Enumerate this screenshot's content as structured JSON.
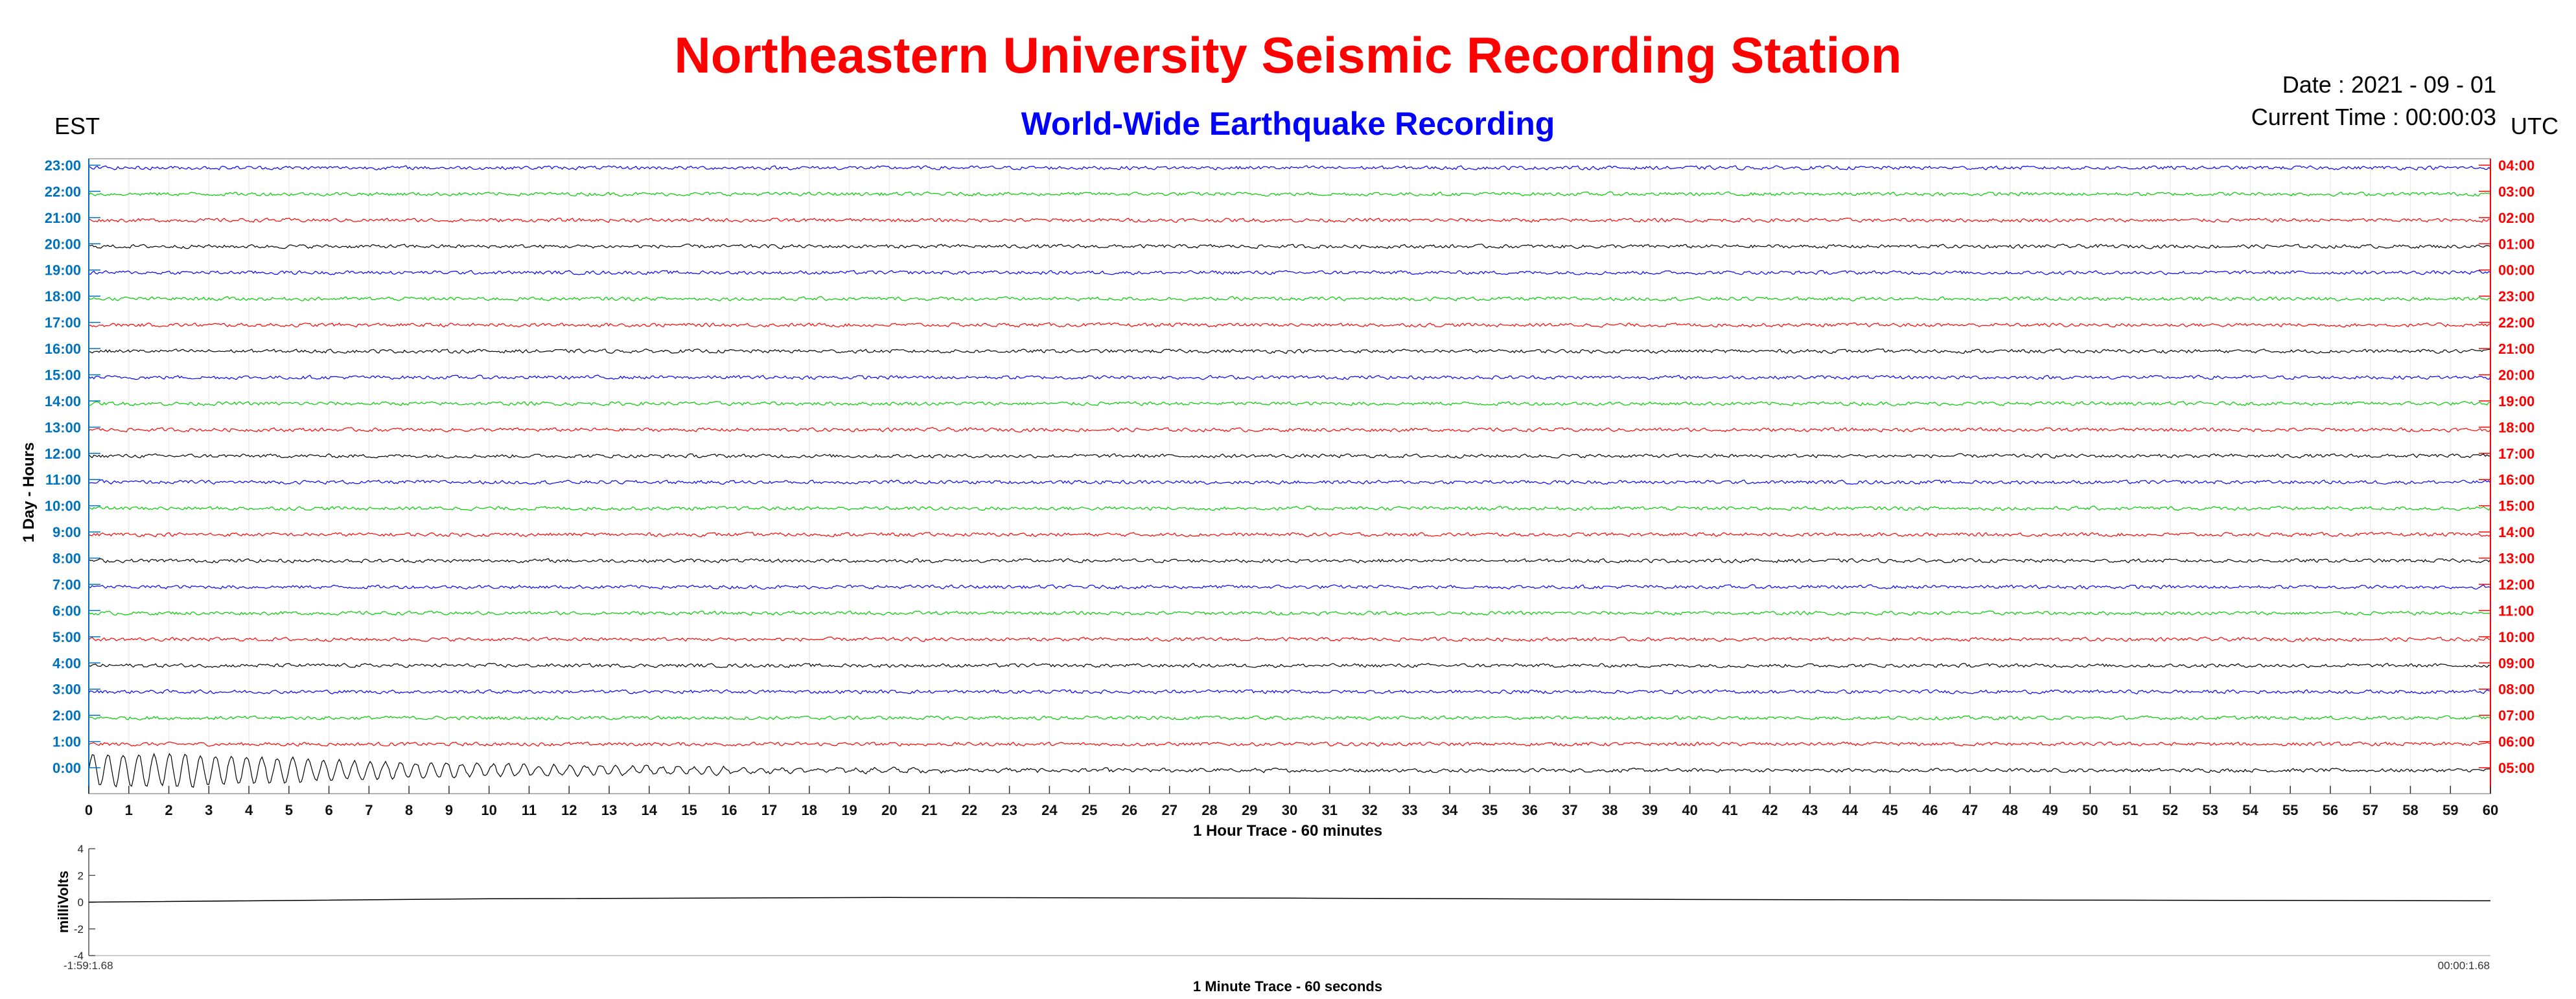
{
  "title": "Northeastern University Seismic Recording Station",
  "subtitle": "World-Wide Earthquake Recording",
  "left_timezone": "EST",
  "right_timezone": "UTC",
  "date_text": "Date : 2021 - 09 - 01",
  "current_time_text": "Current Time : 00:00:03",
  "colors": {
    "title": "#ff0000",
    "subtitle": "#0000ff",
    "left_ticks": "#0072bd",
    "right_ticks": "#ff0000"
  },
  "chart_data": [
    {
      "type": "line",
      "title": "",
      "xlabel": "1 Hour Trace - 60 minutes",
      "ylabel": "1 Day - Hours",
      "xlim": [
        0,
        60
      ],
      "x_ticks": [
        "0",
        "1",
        "2",
        "3",
        "4",
        "5",
        "6",
        "7",
        "8",
        "9",
        "10",
        "11",
        "12",
        "13",
        "14",
        "15",
        "16",
        "17",
        "18",
        "19",
        "20",
        "21",
        "22",
        "23",
        "24",
        "25",
        "26",
        "27",
        "28",
        "29",
        "30",
        "31",
        "32",
        "33",
        "34",
        "35",
        "36",
        "37",
        "38",
        "39",
        "40",
        "41",
        "42",
        "43",
        "44",
        "45",
        "46",
        "47",
        "48",
        "49",
        "50",
        "51",
        "52",
        "53",
        "54",
        "55",
        "56",
        "57",
        "58",
        "59",
        "60"
      ],
      "left_y_ticks": [
        "0:00",
        "1:00",
        "2:00",
        "3:00",
        "4:00",
        "5:00",
        "6:00",
        "7:00",
        "8:00",
        "9:00",
        "10:00",
        "11:00",
        "12:00",
        "13:00",
        "14:00",
        "15:00",
        "16:00",
        "17:00",
        "18:00",
        "19:00",
        "20:00",
        "21:00",
        "22:00",
        "23:00"
      ],
      "right_y_ticks": [
        "05:00",
        "06:00",
        "07:00",
        "08:00",
        "09:00",
        "10:00",
        "11:00",
        "12:00",
        "13:00",
        "14:00",
        "15:00",
        "16:00",
        "17:00",
        "18:00",
        "19:00",
        "20:00",
        "21:00",
        "22:00",
        "23:00",
        "00:00",
        "01:00",
        "02:00",
        "03:00",
        "04:00"
      ],
      "trace_colors": [
        "#000000",
        "#ff0000",
        "#00cc00",
        "#0000ff"
      ],
      "grid": true,
      "event": {
        "hour": "0:00",
        "start_minute": 0,
        "end_minute": 16,
        "peak_amplitude": "large"
      }
    },
    {
      "type": "line",
      "title": "",
      "xlabel": "1 Minute Trace  - 60 seconds",
      "ylabel": "milliVolts",
      "ylim": [
        -4,
        4
      ],
      "y_ticks": [
        "4",
        "2",
        "0",
        "-2",
        "-4"
      ],
      "x_start_label": "-1:59:1.68",
      "x_end_label": "00:00:1.68",
      "series": [
        {
          "x": [
            0,
            10,
            20,
            30,
            40,
            50,
            60
          ],
          "values": [
            0.0,
            0.25,
            0.35,
            0.3,
            0.2,
            0.15,
            0.1
          ]
        }
      ]
    }
  ]
}
